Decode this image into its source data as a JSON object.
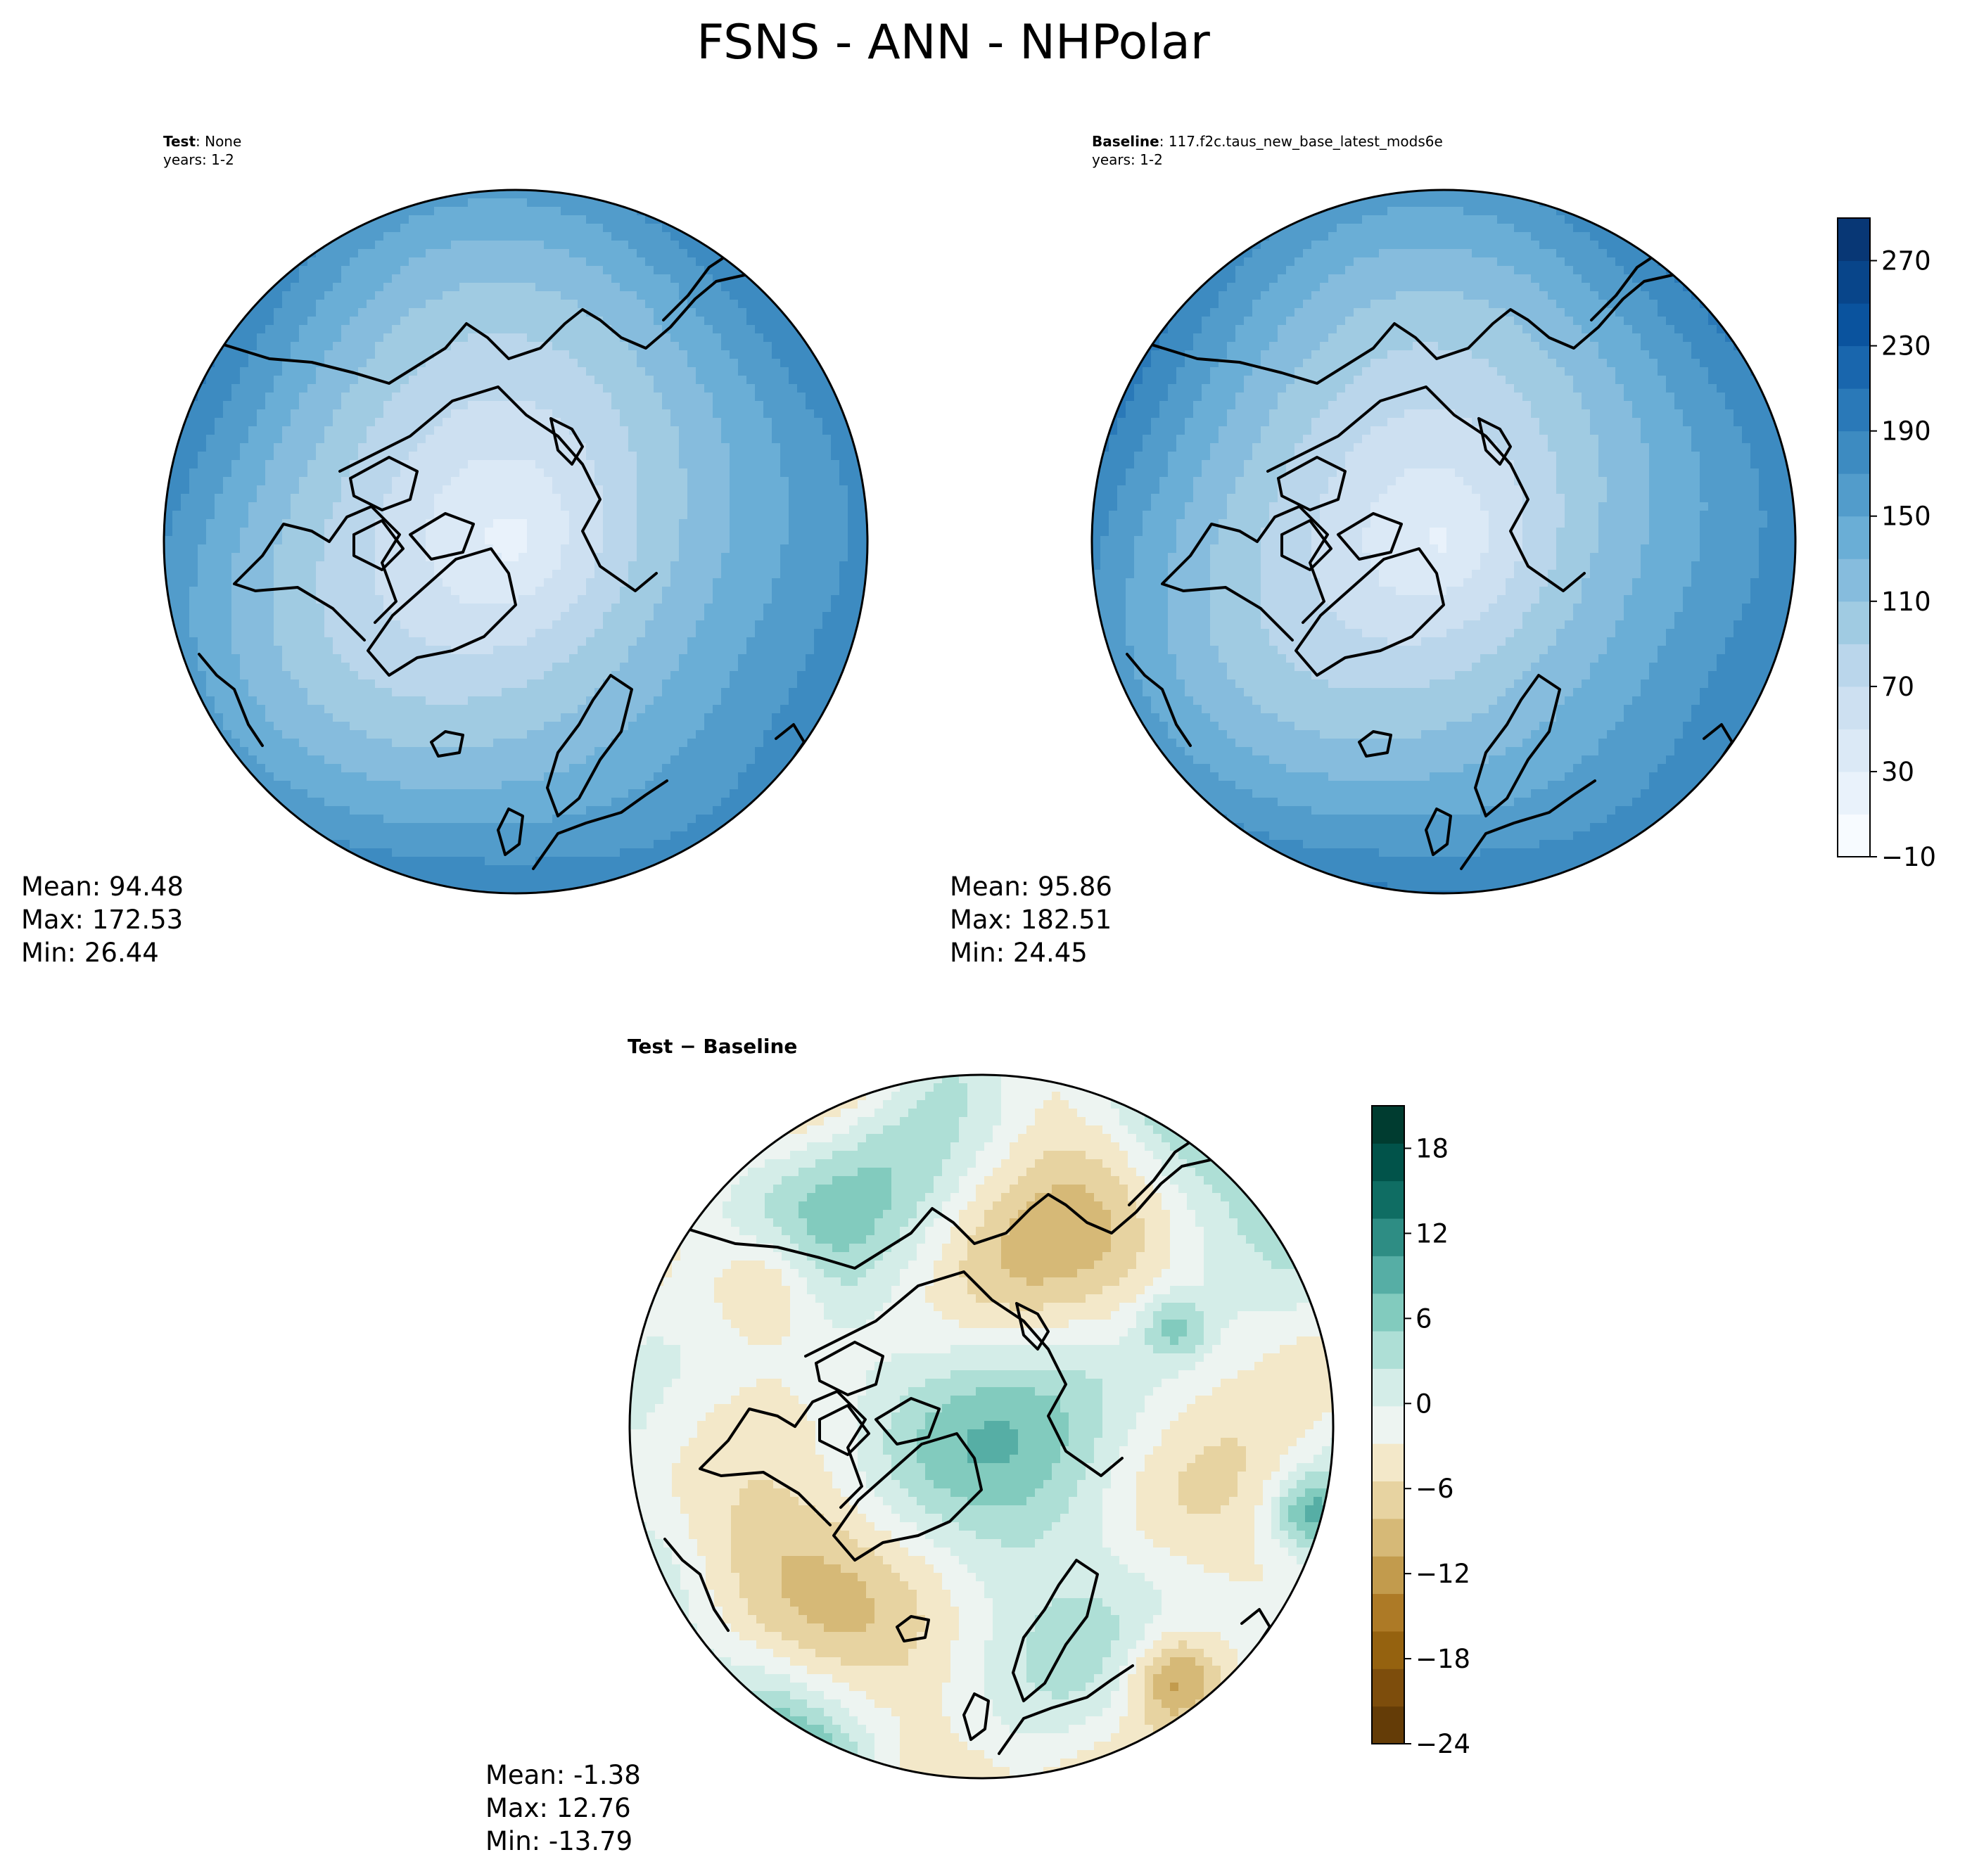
{
  "figure": {
    "title": "FSNS - ANN - NHPolar",
    "projection": "north polar stereographic",
    "field": "FSNS",
    "season": "ANN",
    "region": "NHPolar"
  },
  "panels": {
    "test": {
      "label_bold": "Test",
      "label_rest": ": None",
      "years": "years: 1-2",
      "mean": "Mean: 94.48",
      "max": "Max: 172.53",
      "min": "Min: 26.44",
      "stats": {
        "mean": 94.48,
        "max": 172.53,
        "min": 26.44
      }
    },
    "baseline": {
      "label_bold": "Baseline",
      "label_rest": ": 117.f2c.taus_new_base_latest_mods6e",
      "years": "years: 1-2",
      "mean": "Mean: 95.86",
      "max": "Max: 182.51",
      "min": "Min: 24.45",
      "stats": {
        "mean": 95.86,
        "max": 182.51,
        "min": 24.45
      }
    },
    "diff": {
      "label": "Test − Baseline",
      "mean": "Mean: -1.38",
      "max": "Max: 12.76",
      "min": "Min: -13.79",
      "stats": {
        "mean": -1.38,
        "max": 12.76,
        "min": -13.79
      }
    }
  },
  "colorbars": {
    "main": {
      "colormap": "Blues",
      "range": [
        -10,
        290
      ],
      "levels": 15,
      "ticks": [
        "270",
        "230",
        "190",
        "150",
        "110",
        "70",
        "30",
        "−10"
      ],
      "colors": [
        "#f7fbff",
        "#e9f2fb",
        "#dbe9f6",
        "#cde0f1",
        "#bad6eb",
        "#a0cbe2",
        "#86bcdd",
        "#6aaed6",
        "#529ccb",
        "#3d8bc1",
        "#2a79b8",
        "#1966ad",
        "#0a539e",
        "#08458a",
        "#083775"
      ]
    },
    "diff": {
      "colormap": "BrBG",
      "range": [
        -24,
        21
      ],
      "levels": 15,
      "ticks": [
        "18",
        "12",
        "6",
        "0",
        "−6",
        "−12",
        "−18",
        "−24"
      ],
      "colors": [
        "#643c07",
        "#7d4d0c",
        "#95620f",
        "#ad7a26",
        "#c29b4d",
        "#d6b977",
        "#e7d3a1",
        "#f3e8c9",
        "#edf4f1",
        "#d4ede8",
        "#aedfd6",
        "#82cbbe",
        "#56aea5",
        "#2e8d84",
        "#0f6d63",
        "#01534a",
        "#003c30"
      ]
    }
  }
}
